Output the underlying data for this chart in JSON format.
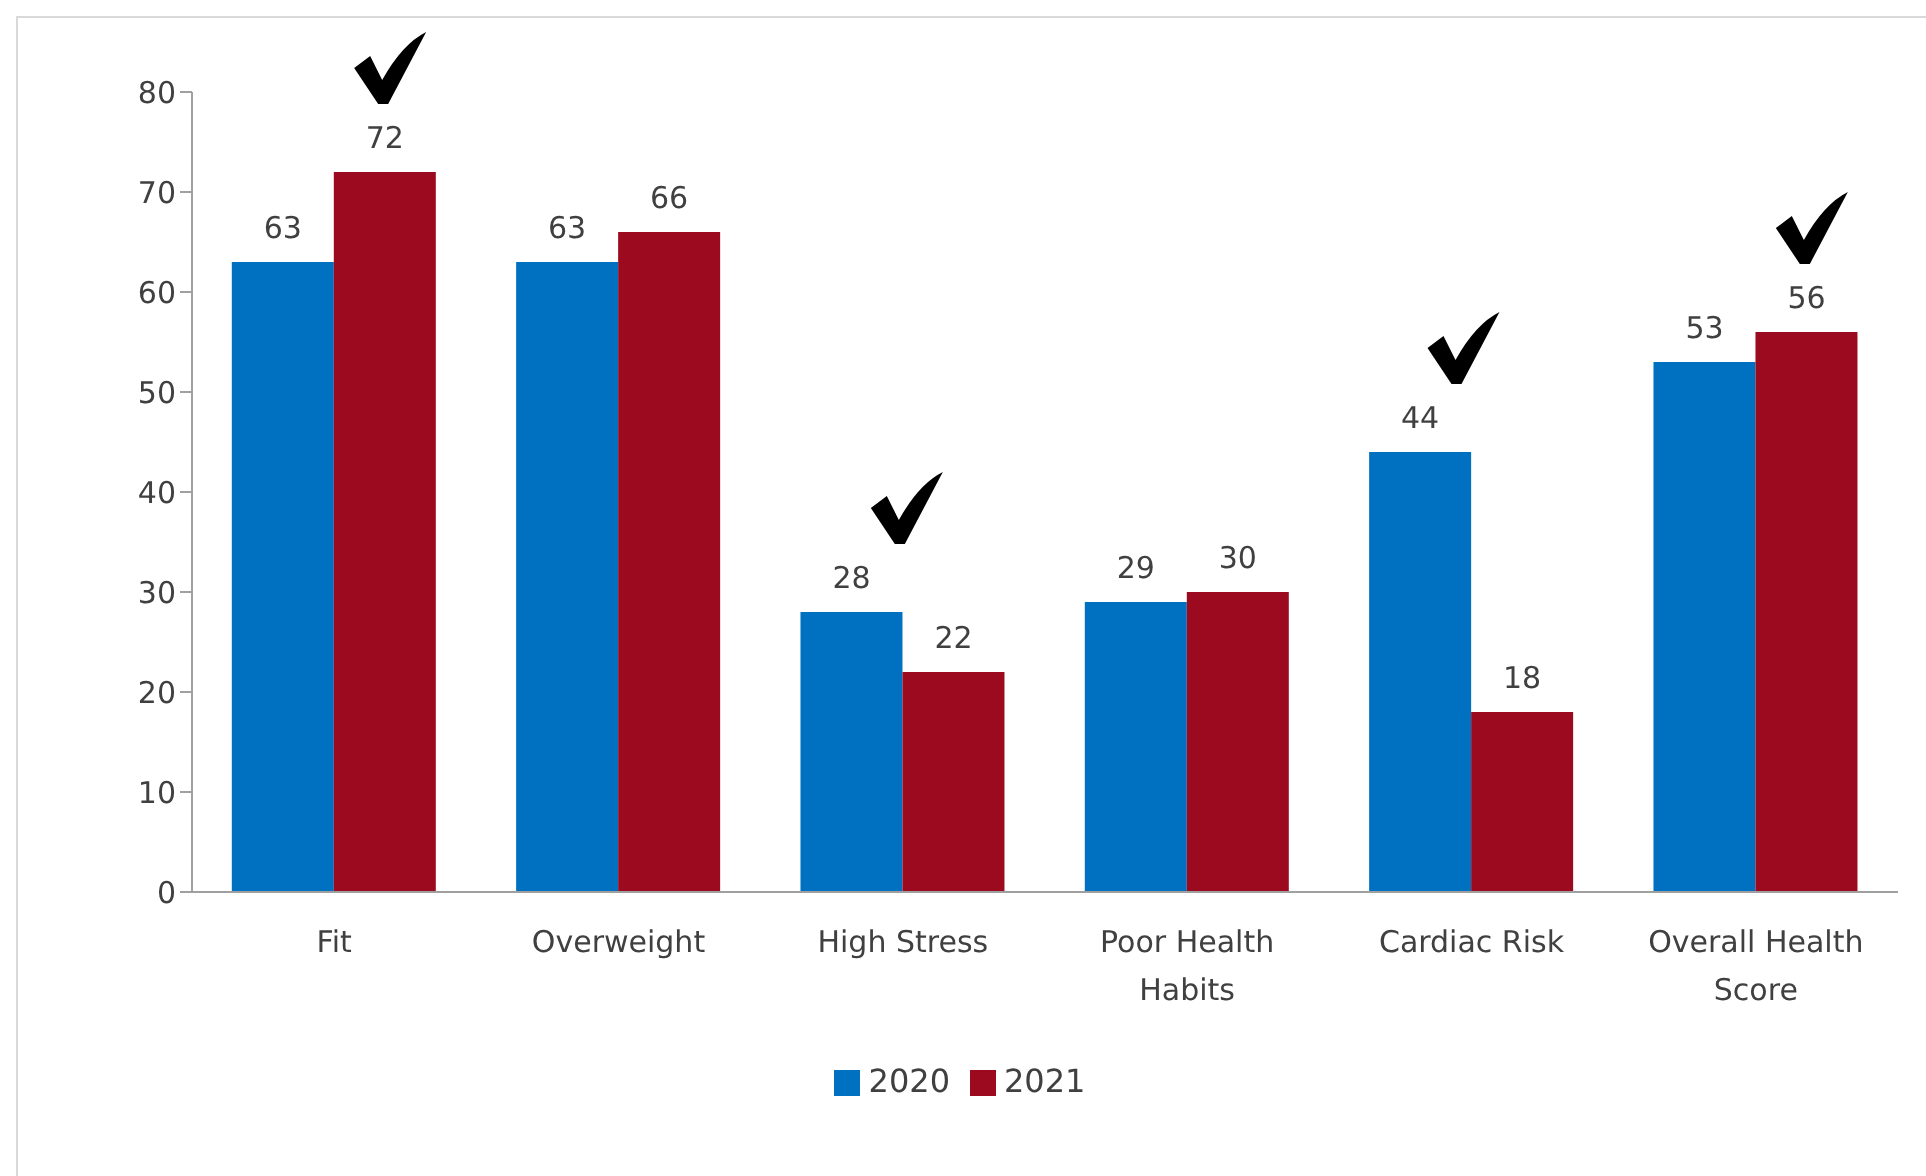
{
  "chart_data": {
    "type": "bar",
    "categories": [
      "Fit",
      "Overweight",
      "High Stress",
      "Poor Health Habits",
      "Cardiac Risk",
      "Overall Health Score"
    ],
    "series": [
      {
        "name": "2020",
        "color": "#0070c0",
        "values": [
          63,
          63,
          28,
          29,
          44,
          53
        ]
      },
      {
        "name": "2021",
        "color": "#9b0a1e",
        "values": [
          72,
          66,
          22,
          30,
          18,
          56
        ]
      }
    ],
    "ylim": [
      0,
      80
    ],
    "yticks": [
      0,
      10,
      20,
      30,
      40,
      50,
      60,
      70,
      80
    ],
    "legend": "bottom",
    "data_labels": true
  }
}
